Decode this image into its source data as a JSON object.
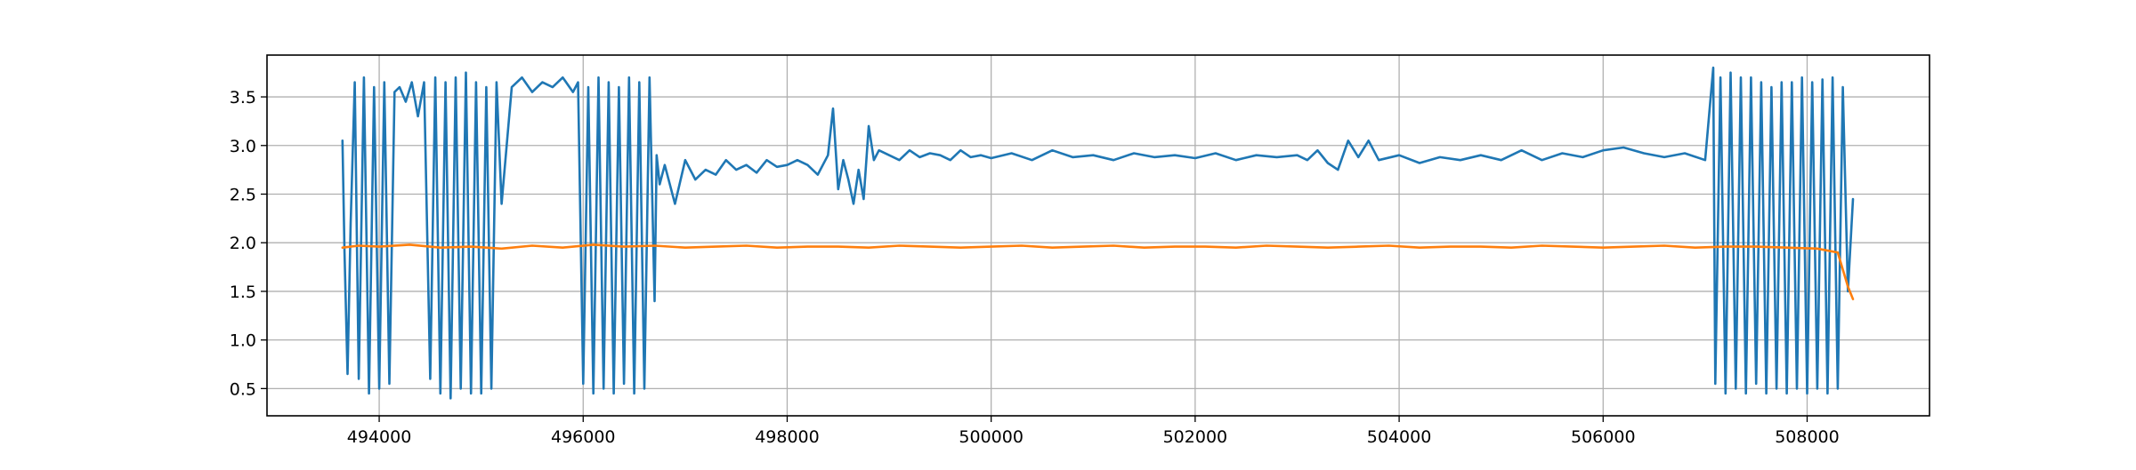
{
  "chart_data": {
    "type": "line",
    "title": "",
    "xlabel": "",
    "ylabel": "",
    "xlim": [
      492900,
      509200
    ],
    "ylim": [
      0.22,
      3.93
    ],
    "xticks": [
      494000,
      496000,
      498000,
      500000,
      502000,
      504000,
      506000,
      508000
    ],
    "xtick_labels": [
      "494000",
      "496000",
      "498000",
      "500000",
      "502000",
      "504000",
      "506000",
      "508000"
    ],
    "yticks": [
      0.5,
      1.0,
      1.5,
      2.0,
      2.5,
      3.0,
      3.5
    ],
    "ytick_labels": [
      "0.5",
      "1.0",
      "1.5",
      "2.0",
      "2.5",
      "3.0",
      "3.5"
    ],
    "grid": true,
    "legend": "none",
    "series": [
      {
        "color": "#1f77b4",
        "x": [
          493640,
          493660,
          493690,
          493720,
          493760,
          493800,
          493850,
          493900,
          493950,
          494000,
          494050,
          494100,
          494150,
          494200,
          494260,
          494320,
          494380,
          494440,
          494500,
          494550,
          494600,
          494650,
          494700,
          494750,
          494800,
          494850,
          494900,
          494950,
          495000,
          495050,
          495100,
          495150,
          495200,
          495300,
          495400,
          495500,
          495600,
          495700,
          495800,
          495900,
          495950,
          496000,
          496050,
          496100,
          496150,
          496200,
          496250,
          496300,
          496350,
          496400,
          496450,
          496500,
          496550,
          496600,
          496650,
          496700,
          496720,
          496750,
          496800,
          496900,
          497000,
          497100,
          497200,
          497300,
          497400,
          497500,
          497600,
          497700,
          497800,
          497900,
          498000,
          498100,
          498200,
          498300,
          498400,
          498450,
          498500,
          498550,
          498600,
          498650,
          498700,
          498750,
          498800,
          498850,
          498900,
          499000,
          499100,
          499200,
          499300,
          499400,
          499500,
          499600,
          499700,
          499800,
          499900,
          500000,
          500200,
          500400,
          500600,
          500800,
          501000,
          501200,
          501400,
          501600,
          501800,
          502000,
          502200,
          502400,
          502600,
          502800,
          503000,
          503100,
          503200,
          503300,
          503400,
          503500,
          503600,
          503700,
          503800,
          504000,
          504200,
          504400,
          504600,
          504800,
          505000,
          505200,
          505400,
          505600,
          505800,
          506000,
          506200,
          506400,
          506600,
          506800,
          507000,
          507080,
          507100,
          507150,
          507200,
          507250,
          507300,
          507350,
          507400,
          507450,
          507500,
          507550,
          507600,
          507650,
          507700,
          507750,
          507800,
          507850,
          507900,
          507950,
          508000,
          508050,
          508100,
          508150,
          508200,
          508250,
          508300,
          508350,
          508400,
          508450
        ],
        "y": [
          3.05,
          1.9,
          0.65,
          2.2,
          3.65,
          0.6,
          3.7,
          0.45,
          3.6,
          0.5,
          3.65,
          0.55,
          3.55,
          3.6,
          3.45,
          3.65,
          3.3,
          3.65,
          0.6,
          3.7,
          0.45,
          3.65,
          0.4,
          3.7,
          0.5,
          3.75,
          0.45,
          3.65,
          0.45,
          3.6,
          0.5,
          3.65,
          2.4,
          3.6,
          3.7,
          3.55,
          3.65,
          3.6,
          3.7,
          3.55,
          3.65,
          0.55,
          3.6,
          0.45,
          3.7,
          0.5,
          3.65,
          0.45,
          3.6,
          0.55,
          3.7,
          0.45,
          3.65,
          0.5,
          3.7,
          1.4,
          2.9,
          2.6,
          2.8,
          2.4,
          2.85,
          2.65,
          2.75,
          2.7,
          2.85,
          2.75,
          2.8,
          2.72,
          2.85,
          2.78,
          2.8,
          2.85,
          2.8,
          2.7,
          2.9,
          3.38,
          2.55,
          2.85,
          2.65,
          2.4,
          2.75,
          2.45,
          3.2,
          2.85,
          2.95,
          2.9,
          2.85,
          2.95,
          2.88,
          2.92,
          2.9,
          2.85,
          2.95,
          2.88,
          2.9,
          2.87,
          2.92,
          2.85,
          2.95,
          2.88,
          2.9,
          2.85,
          2.92,
          2.88,
          2.9,
          2.87,
          2.92,
          2.85,
          2.9,
          2.88,
          2.9,
          2.85,
          2.95,
          2.82,
          2.75,
          3.05,
          2.88,
          3.05,
          2.85,
          2.9,
          2.82,
          2.88,
          2.85,
          2.9,
          2.85,
          2.95,
          2.85,
          2.92,
          2.88,
          2.95,
          2.98,
          2.92,
          2.88,
          2.92,
          2.85,
          3.8,
          0.55,
          3.7,
          0.45,
          3.75,
          0.5,
          3.7,
          0.45,
          3.7,
          0.55,
          3.65,
          0.45,
          3.6,
          0.5,
          3.65,
          0.45,
          3.65,
          0.5,
          3.7,
          0.45,
          3.65,
          0.5,
          3.68,
          0.45,
          3.7,
          0.5,
          3.6,
          1.5,
          2.45
        ]
      },
      {
        "color": "#ff7f0e",
        "x": [
          493640,
          493800,
          494000,
          494300,
          494600,
          494900,
          495200,
          495500,
          495800,
          496100,
          496400,
          496700,
          497000,
          497300,
          497600,
          497900,
          498200,
          498500,
          498800,
          499100,
          499400,
          499700,
          500000,
          500300,
          500600,
          500900,
          501200,
          501500,
          501800,
          502100,
          502400,
          502700,
          503000,
          503300,
          503600,
          503900,
          504200,
          504500,
          504800,
          505100,
          505400,
          505700,
          506000,
          506300,
          506600,
          506900,
          507200,
          507500,
          507800,
          508100,
          508300,
          508400,
          508450
        ],
        "y": [
          1.95,
          1.97,
          1.96,
          1.98,
          1.95,
          1.96,
          1.94,
          1.97,
          1.95,
          1.98,
          1.96,
          1.97,
          1.95,
          1.96,
          1.97,
          1.95,
          1.96,
          1.96,
          1.95,
          1.97,
          1.96,
          1.95,
          1.96,
          1.97,
          1.95,
          1.96,
          1.97,
          1.95,
          1.96,
          1.96,
          1.95,
          1.97,
          1.96,
          1.95,
          1.96,
          1.97,
          1.95,
          1.96,
          1.96,
          1.95,
          1.97,
          1.96,
          1.95,
          1.96,
          1.97,
          1.95,
          1.96,
          1.96,
          1.95,
          1.94,
          1.9,
          1.55,
          1.42
        ]
      }
    ]
  }
}
